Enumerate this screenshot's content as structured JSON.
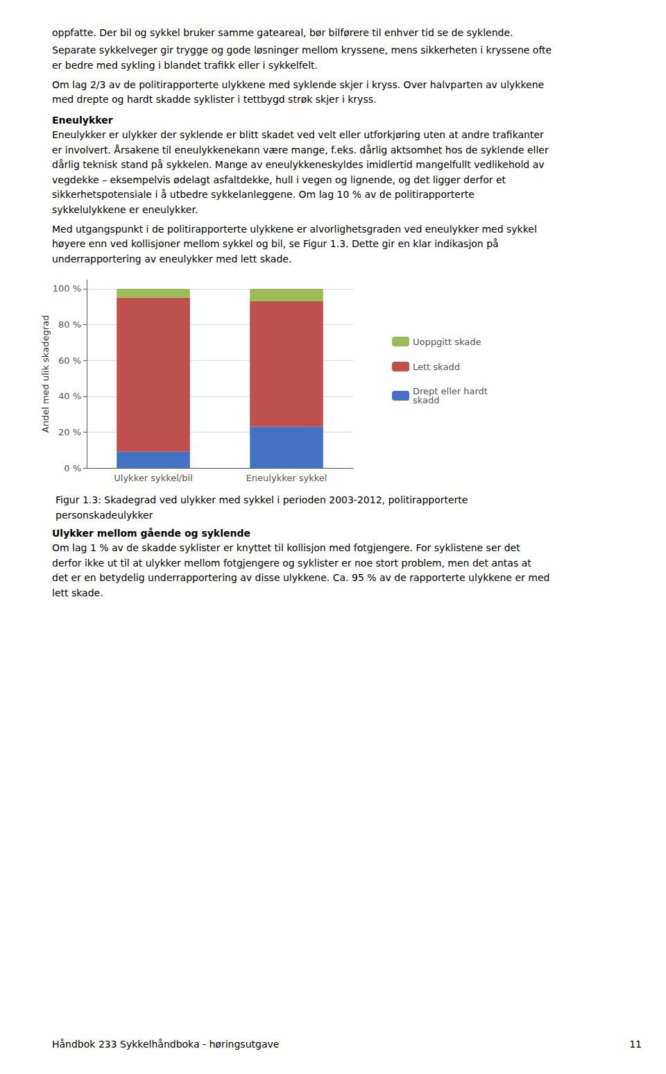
{
  "chart_data": {
    "type": "bar",
    "stacked": true,
    "title": "Figur 1.3: Skadegrad ved ulykker med sykkel i perioden 2003-2012, politirapporterte\npersonskadeulykker",
    "categories": [
      "Ulykker sykkel/bil",
      "Eneulykker sykkel"
    ],
    "series": [
      {
        "name": "Drept eller hardt\nskadd",
        "color": "#4472C4",
        "values": [
          9,
          23
        ]
      },
      {
        "name": "Lett skadd",
        "color": "#C0504D",
        "values": [
          86,
          70
        ]
      },
      {
        "name": "Uoppgitt skade",
        "color": "#9BBB59",
        "values": [
          5,
          7
        ]
      }
    ],
    "ylabel": "Andel med ulik skadegrad",
    "ylim": [
      0,
      105
    ],
    "yticks": [
      {
        "value": 0,
        "label": "0 %"
      },
      {
        "value": 20,
        "label": "20 %"
      },
      {
        "value": 40,
        "label": "40 %"
      },
      {
        "value": 60,
        "label": "60 %"
      },
      {
        "value": 80,
        "label": "80 %"
      },
      {
        "value": 100,
        "label": "100 %"
      }
    ],
    "grid": true,
    "legend": "right",
    "annotations": [
      "oppfatte. Der bil og sykkel bruker samme gateareal, bør bilførere til enhver tid se de syklende.",
      "Separate sykkelveger gir trygge og gode løsninger mellom kryssene, mens sikkerheten i kryssene ofte",
      "er bedre med sykling i blandet trafikk eller i sykkelfelt.",
      "Om lag 2/3 av de politirapporterte ulykkene med syklende skjer i kryss. Over halvparten av ulykkene",
      "med drepte og hardt skadde syklister i tettbygd strøk skjer i kryss.",
      "Eneulykker",
      "Eneulykker er ulykker der syklende er blitt skadet ved velt eller utforkjøring uten at andre trafikanter",
      "er involvert. Årsakene til eneulykkenekann være mange, f.eks. dårlig aktsomhet hos de syklende eller",
      "dårlig teknisk stand på sykkelen. Mange av eneulykkeneskyldes imidlertid mangelfullt vedlikehold av",
      "vegdekke – eksempelvis ødelagt asfaltdekke, hull i vegen og lignende, og det ligger derfor et",
      "sikkerhetspotensiale i å utbedre sykkelanleggene. Om lag 10 % av de politirapporterte",
      "sykkelulykkene er eneulykker.",
      "Med utgangspunkt i de politirapporterte ulykkene er alvorlighetsgraden ved eneulykker med sykkel",
      "høyere enn ved kollisjoner mellom sykkel og bil, se Figur 1.3. Dette gir en klar indikasjon på",
      "underrapportering av eneulykker med lett skade.",
      "Ulykker mellom gående og syklende",
      "Om lag 1 % av de skadde syklister er knyttet til kollisjon med fotgjengere. For syklistene ser det",
      "derfor ikke ut til at ulykker mellom fotgjengere og syklister er noe stort problem, men det antas at",
      "det er en betydelig underrapportering av disse ulykkene. Ca. 95 % av de rapporterte ulykkene er med",
      "lett skade.",
      "Håndbok 233 Sykkelhåndboka - høringsutgave",
      "11"
    ]
  }
}
